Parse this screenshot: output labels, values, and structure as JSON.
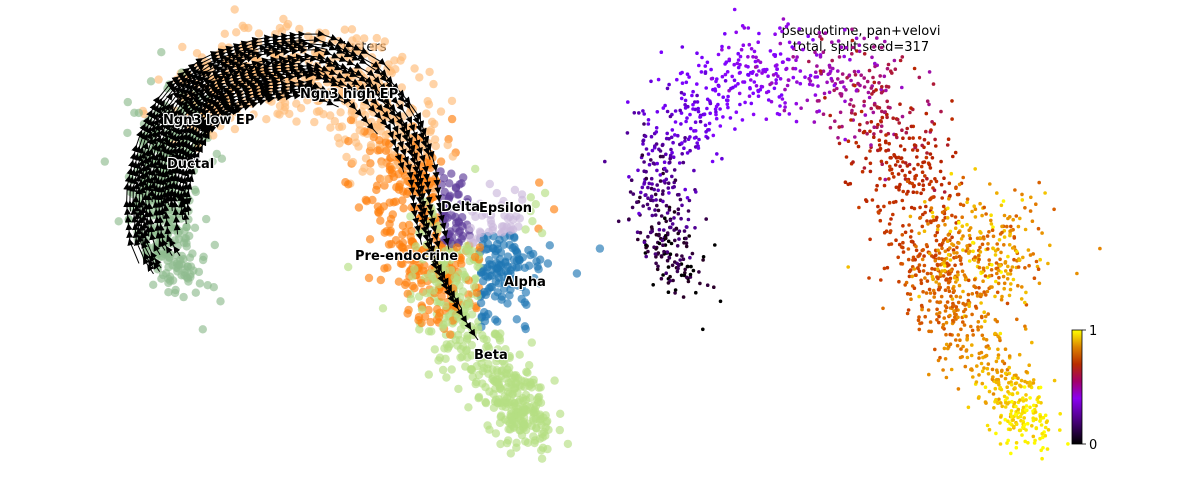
{
  "left_panel": {
    "title": "clusters"
  },
  "right_panel": {
    "title_line1": "pseudotime, pan+velovi",
    "title_line2": "total, split seed=317"
  },
  "colorbar": {
    "min_label": "0",
    "max_label": "1",
    "colormap": "gnuplot"
  },
  "cluster_colors": {
    "Ductal": "#8fbc8f",
    "Ngn3 low EP": "#8fbc8f",
    "Ngn3 high EP": "#ffbb78",
    "Pre-endocrine": "#ff7f0e",
    "Alpha": "#1f77b4",
    "Beta": "#b5de82",
    "Delta": "#5e3c99",
    "Epsilon": "#cbb8dc"
  },
  "chart_data": [
    {
      "type": "scatter",
      "title": "clusters",
      "embedding": "umap",
      "overlay": "velocity streamlines",
      "categories": [
        "Ductal",
        "Ngn3 low EP",
        "Ngn3 high EP",
        "Pre-endocrine",
        "Alpha",
        "Beta",
        "Delta",
        "Epsilon"
      ],
      "cluster_labels": [
        "Ngn3 low EP",
        "Ngn3 high EP",
        "Ductal",
        "Delta",
        "Epsilon",
        "Pre-endocrine",
        "Alpha",
        "Beta"
      ],
      "axes_visible": false,
      "grid": false
    },
    {
      "type": "scatter",
      "title": "pseudotime, pan+velovi\ntotal, split seed=317",
      "color_by": "pseudotime",
      "colorbar_range": [
        0,
        1
      ],
      "colormap": "gnuplot",
      "axes_visible": false,
      "grid": false
    }
  ]
}
